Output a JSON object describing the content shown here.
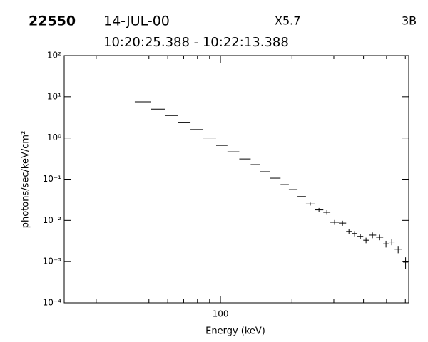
{
  "chart_data": {
    "type": "errorbar",
    "id": "22550",
    "date": "14-JUL-00",
    "class": "X5.7",
    "importance": "3B",
    "time_range": "10:20:25.388 - 10:22:13.388",
    "xlabel": "Energy (keV)",
    "ylabel": "photons/sec/keV/cm²",
    "xlog": true,
    "ylog": true,
    "xlim": [
      22,
      620
    ],
    "ylim": [
      0.0001,
      100
    ],
    "xticks": [
      100
    ],
    "xminor": [
      30,
      40,
      50,
      60,
      70,
      80,
      90,
      200,
      300,
      400,
      500,
      600
    ],
    "yticks": [
      {
        "value": 100,
        "label": "10²"
      },
      {
        "value": 10,
        "label": "10¹"
      },
      {
        "value": 1,
        "label": "10⁰"
      },
      {
        "value": 0.1,
        "label": "10⁻¹"
      },
      {
        "value": 0.01,
        "label": "10⁻²"
      },
      {
        "value": 0.001,
        "label": "10⁻³"
      },
      {
        "value": 0.0001,
        "label": "10⁻⁴"
      }
    ],
    "series": [
      {
        "color": "#000000",
        "x_low": [
          43.6,
          50.8,
          58.3,
          66.1,
          74.8,
          84.7,
          95.9,
          107,
          120,
          134,
          147,
          162,
          179,
          194,
          211,
          229,
          249,
          271,
          290,
          315,
          338,
          357,
          377,
          399,
          421,
          452,
          484,
          511,
          541,
          587
        ],
        "x_high": [
          50.8,
          58.3,
          66.1,
          74.8,
          84.7,
          95.9,
          107,
          120,
          134,
          147,
          162,
          179,
          194,
          211,
          229,
          249,
          271,
          290,
          315,
          338,
          357,
          377,
          399,
          421,
          452,
          484,
          511,
          541,
          579,
          616
        ],
        "values": [
          7.5,
          5.0,
          3.5,
          2.4,
          1.6,
          1.0,
          0.66,
          0.46,
          0.31,
          0.226,
          0.152,
          0.106,
          0.074,
          0.056,
          0.038,
          0.025,
          0.018,
          0.0157,
          0.009,
          0.0086,
          0.0054,
          0.0048,
          0.0041,
          0.0033,
          0.0044,
          0.0039,
          0.0027,
          0.003,
          0.002,
          0.00097
        ],
        "yerr": [
          null,
          null,
          null,
          null,
          null,
          null,
          null,
          null,
          null,
          null,
          null,
          null,
          null,
          null,
          null,
          0.002,
          0.002,
          0.002,
          0.0012,
          0.0012,
          0.0008,
          0.0007,
          0.0006,
          0.0005,
          0.0007,
          0.0006,
          0.0005,
          0.0005,
          0.0004,
          0.0003
        ]
      }
    ]
  }
}
